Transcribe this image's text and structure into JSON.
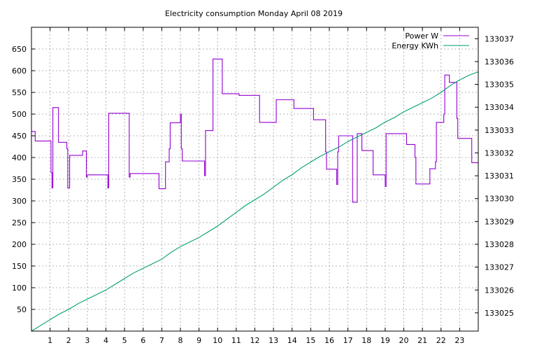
{
  "chart_data": {
    "type": "line",
    "title": "Electricity consumption Monday April 08 2019",
    "grid": true,
    "legend_position": "top-right",
    "x_axis": {
      "range": [
        0,
        24
      ],
      "ticks": [
        1,
        2,
        3,
        4,
        5,
        6,
        7,
        8,
        9,
        10,
        11,
        12,
        13,
        14,
        15,
        16,
        17,
        18,
        19,
        20,
        21,
        22,
        23
      ],
      "tick_labels": [
        "1",
        "2",
        "3",
        "4",
        "5",
        "6",
        "7",
        "8",
        "9",
        "10",
        "11",
        "12",
        "13",
        "14",
        "15",
        "16",
        "17",
        "18",
        "19",
        "20",
        "21",
        "22",
        "23"
      ]
    },
    "y_left": {
      "range": [
        0,
        700
      ],
      "ticks": [
        50,
        100,
        150,
        200,
        250,
        300,
        350,
        400,
        450,
        500,
        550,
        600,
        650
      ],
      "tick_labels": [
        "50",
        "100",
        "150",
        "200",
        "250",
        "300",
        "350",
        "400",
        "450",
        "500",
        "550",
        "600",
        "650"
      ]
    },
    "y_right": {
      "range": [
        133024.2,
        133037.5
      ],
      "ticks": [
        133025,
        133026,
        133027,
        133028,
        133029,
        133030,
        133031,
        133032,
        133033,
        133034,
        133035,
        133036,
        133037
      ],
      "tick_labels": [
        "133025",
        "133026",
        "133027",
        "133028",
        "133029",
        "133030",
        "133031",
        "133032",
        "133033",
        "133034",
        "133035",
        "133036",
        "133037"
      ]
    },
    "series": [
      {
        "name": "Power W",
        "axis": "left",
        "color": "#9400d3",
        "step": true,
        "points": [
          [
            0.0,
            460
          ],
          [
            0.2,
            438
          ],
          [
            1.0,
            438
          ],
          [
            1.05,
            365
          ],
          [
            1.1,
            330
          ],
          [
            1.15,
            515
          ],
          [
            1.4,
            515
          ],
          [
            1.45,
            435
          ],
          [
            1.85,
            435
          ],
          [
            1.9,
            420
          ],
          [
            1.95,
            330
          ],
          [
            2.05,
            405
          ],
          [
            2.7,
            405
          ],
          [
            2.75,
            415
          ],
          [
            2.9,
            415
          ],
          [
            2.95,
            355
          ],
          [
            3.0,
            360
          ],
          [
            4.05,
            360
          ],
          [
            4.1,
            330
          ],
          [
            4.15,
            502
          ],
          [
            5.2,
            502
          ],
          [
            5.25,
            355
          ],
          [
            5.3,
            363
          ],
          [
            6.8,
            363
          ],
          [
            6.85,
            328
          ],
          [
            7.15,
            328
          ],
          [
            7.2,
            390
          ],
          [
            7.35,
            390
          ],
          [
            7.4,
            420
          ],
          [
            7.45,
            480
          ],
          [
            7.95,
            480
          ],
          [
            8.0,
            500
          ],
          [
            8.05,
            420
          ],
          [
            8.1,
            392
          ],
          [
            9.25,
            392
          ],
          [
            9.3,
            358
          ],
          [
            9.35,
            462
          ],
          [
            9.7,
            462
          ],
          [
            9.75,
            627
          ],
          [
            10.2,
            627
          ],
          [
            10.25,
            547
          ],
          [
            11.1,
            547
          ],
          [
            11.15,
            543
          ],
          [
            12.2,
            543
          ],
          [
            12.25,
            481
          ],
          [
            13.1,
            481
          ],
          [
            13.15,
            533
          ],
          [
            14.05,
            533
          ],
          [
            14.1,
            513
          ],
          [
            15.1,
            513
          ],
          [
            15.15,
            487
          ],
          [
            15.75,
            487
          ],
          [
            15.8,
            413
          ],
          [
            15.85,
            373
          ],
          [
            16.35,
            373
          ],
          [
            16.4,
            338
          ],
          [
            16.45,
            413
          ],
          [
            16.5,
            450
          ],
          [
            17.2,
            450
          ],
          [
            17.25,
            297
          ],
          [
            17.45,
            297
          ],
          [
            17.5,
            455
          ],
          [
            17.7,
            455
          ],
          [
            17.75,
            416
          ],
          [
            18.3,
            416
          ],
          [
            18.35,
            360
          ],
          [
            18.95,
            360
          ],
          [
            19.0,
            333
          ],
          [
            19.05,
            455
          ],
          [
            20.1,
            455
          ],
          [
            20.15,
            430
          ],
          [
            20.55,
            430
          ],
          [
            20.6,
            400
          ],
          [
            20.65,
            339
          ],
          [
            21.35,
            339
          ],
          [
            21.4,
            374
          ],
          [
            21.65,
            374
          ],
          [
            21.7,
            390
          ],
          [
            21.75,
            481
          ],
          [
            22.1,
            481
          ],
          [
            22.15,
            500
          ],
          [
            22.2,
            590
          ],
          [
            22.4,
            590
          ],
          [
            22.45,
            573
          ],
          [
            22.8,
            573
          ],
          [
            22.85,
            490
          ],
          [
            22.9,
            444
          ],
          [
            23.6,
            444
          ],
          [
            23.65,
            388
          ],
          [
            24.0,
            388
          ]
        ]
      },
      {
        "name": "Energy KWh",
        "axis": "right",
        "color": "#009e73",
        "step": false,
        "points": [
          [
            0.0,
            133024.2
          ],
          [
            0.5,
            133024.45
          ],
          [
            1.0,
            133024.7
          ],
          [
            1.5,
            133024.95
          ],
          [
            2.0,
            133025.15
          ],
          [
            2.5,
            133025.4
          ],
          [
            3.0,
            133025.6
          ],
          [
            3.5,
            133025.8
          ],
          [
            4.0,
            133026.0
          ],
          [
            4.5,
            133026.25
          ],
          [
            5.0,
            133026.5
          ],
          [
            5.5,
            133026.75
          ],
          [
            6.0,
            133026.95
          ],
          [
            6.5,
            133027.15
          ],
          [
            7.0,
            133027.35
          ],
          [
            7.5,
            133027.65
          ],
          [
            8.0,
            133027.9
          ],
          [
            8.5,
            133028.1
          ],
          [
            9.0,
            133028.3
          ],
          [
            9.5,
            133028.55
          ],
          [
            10.0,
            133028.8
          ],
          [
            10.5,
            133029.1
          ],
          [
            11.0,
            133029.4
          ],
          [
            11.5,
            133029.7
          ],
          [
            12.0,
            133029.95
          ],
          [
            12.5,
            133030.2
          ],
          [
            13.0,
            133030.5
          ],
          [
            13.5,
            133030.8
          ],
          [
            14.0,
            133031.05
          ],
          [
            14.5,
            133031.35
          ],
          [
            15.0,
            133031.6
          ],
          [
            15.5,
            133031.85
          ],
          [
            16.0,
            133032.05
          ],
          [
            16.5,
            133032.25
          ],
          [
            17.0,
            133032.5
          ],
          [
            17.5,
            133032.7
          ],
          [
            18.0,
            133032.9
          ],
          [
            18.5,
            133033.1
          ],
          [
            19.0,
            133033.35
          ],
          [
            19.5,
            133033.55
          ],
          [
            20.0,
            133033.8
          ],
          [
            20.5,
            133034.0
          ],
          [
            21.0,
            133034.2
          ],
          [
            21.5,
            133034.4
          ],
          [
            22.0,
            133034.65
          ],
          [
            22.5,
            133034.95
          ],
          [
            23.0,
            133035.2
          ],
          [
            23.5,
            133035.4
          ],
          [
            24.0,
            133035.55
          ]
        ]
      }
    ]
  }
}
